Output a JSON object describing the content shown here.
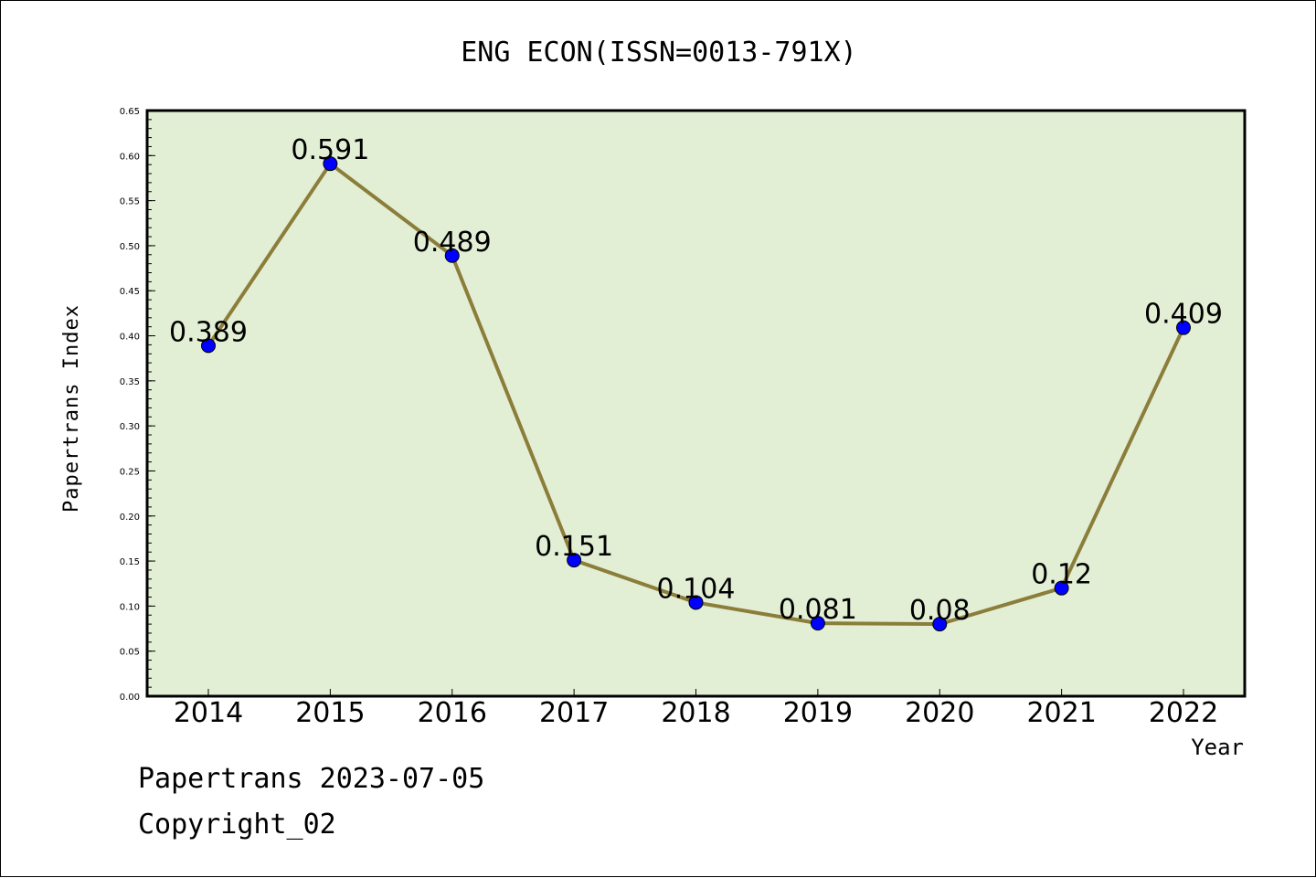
{
  "chart_data": {
    "type": "line",
    "title": "ENG ECON(ISSN=0013-791X)",
    "xlabel": "Year",
    "ylabel": "Papertrans Index",
    "categories": [
      "2014",
      "2015",
      "2016",
      "2017",
      "2018",
      "2019",
      "2020",
      "2021",
      "2022"
    ],
    "series": [
      {
        "values": [
          0.389,
          0.591,
          0.489,
          0.151,
          0.104,
          0.081,
          0.08,
          0.12,
          0.409
        ]
      }
    ],
    "data_labels": [
      "0.389",
      "0.591",
      "0.489",
      "0.151",
      "0.104",
      "0.081",
      "0.08",
      "0.12",
      "0.409"
    ],
    "ylim": [
      0,
      0.65
    ],
    "yticks": [
      "0.00",
      "0.05",
      "0.10",
      "0.15",
      "0.20",
      "0.25",
      "0.30",
      "0.35",
      "0.40",
      "0.45",
      "0.50",
      "0.55",
      "0.60",
      "0.65"
    ],
    "grid": false,
    "colors": {
      "line": "#8B7D3A",
      "marker": "#0000FF",
      "plot_bg": "#E2EFD5"
    }
  },
  "footer": {
    "line1": "Papertrans 2023-07-05",
    "line2": "Copyright_02"
  }
}
